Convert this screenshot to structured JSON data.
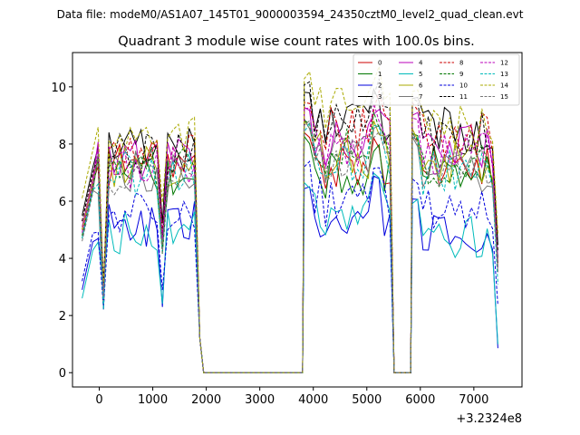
{
  "chart_data": {
    "type": "line",
    "suptitle": "Data file: modeM0/AS1A07_145T01_9000003594_24350cztM0_level2_quad_clean.evt",
    "title": "Quadrant 3 module wise count rates with 100.0s bins.",
    "xlabel": "",
    "ylabel": "",
    "x_offset_label": "+3.2324e8",
    "xlim": [
      -500,
      7900
    ],
    "ylim": [
      -0.5,
      11.2
    ],
    "xticks": [
      0,
      1000,
      2000,
      3000,
      4000,
      5000,
      6000,
      7000
    ],
    "yticks": [
      0,
      2,
      4,
      6,
      8,
      10
    ],
    "grid": false,
    "legend_placement": "top-right",
    "legend_columns": 4,
    "gap_ranges": [
      [
        1950,
        3800
      ],
      [
        5500,
        5800
      ]
    ],
    "segments": [
      [
        -320,
        1880
      ],
      [
        3830,
        5440
      ],
      [
        5850,
        7450
      ]
    ],
    "series": [
      {
        "name": "0",
        "color": "#cc0000",
        "dash": "solid",
        "segment_levels": [
          7.3,
          7.2,
          7.2
        ]
      },
      {
        "name": "1",
        "color": "#007700",
        "dash": "solid",
        "segment_levels": [
          7.0,
          7.0,
          7.3
        ]
      },
      {
        "name": "2",
        "color": "#0000dd",
        "dash": "solid",
        "segment_levels": [
          5.2,
          5.5,
          5.0
        ]
      },
      {
        "name": "3",
        "color": "#000000",
        "dash": "solid",
        "segment_levels": [
          7.8,
          8.8,
          8.5
        ]
      },
      {
        "name": "4",
        "color": "#bb00bb",
        "dash": "solid",
        "segment_levels": [
          7.4,
          8.2,
          7.9
        ]
      },
      {
        "name": "5",
        "color": "#00bbbb",
        "dash": "solid",
        "segment_levels": [
          4.9,
          5.5,
          4.8
        ]
      },
      {
        "name": "6",
        "color": "#aaaa00",
        "dash": "solid",
        "segment_levels": [
          7.3,
          7.6,
          7.4
        ]
      },
      {
        "name": "7",
        "color": "#777777",
        "dash": "solid",
        "segment_levels": [
          7.0,
          7.6,
          7.1
        ]
      },
      {
        "name": "8",
        "color": "#cc0000",
        "dash": "dashed",
        "segment_levels": [
          7.6,
          8.5,
          8.3
        ]
      },
      {
        "name": "9",
        "color": "#007700",
        "dash": "dashed",
        "segment_levels": [
          7.1,
          7.8,
          7.2
        ]
      },
      {
        "name": "10",
        "color": "#0000dd",
        "dash": "dashed",
        "segment_levels": [
          5.5,
          6.1,
          5.6
        ]
      },
      {
        "name": "11",
        "color": "#000000",
        "dash": "dashed",
        "segment_levels": [
          7.6,
          8.9,
          8.4
        ]
      },
      {
        "name": "12",
        "color": "#bb00bb",
        "dash": "dashed",
        "segment_levels": [
          7.2,
          8.0,
          7.7
        ]
      },
      {
        "name": "13",
        "color": "#00bbbb",
        "dash": "dashed",
        "segment_levels": [
          7.0,
          7.5,
          7.0
        ]
      },
      {
        "name": "14",
        "color": "#aaaa00",
        "dash": "dashed",
        "segment_levels": [
          8.4,
          9.3,
          8.6
        ]
      },
      {
        "name": "15",
        "color": "#777777",
        "dash": "dashed",
        "segment_levels": [
          6.9,
          7.6,
          7.2
        ]
      }
    ]
  }
}
